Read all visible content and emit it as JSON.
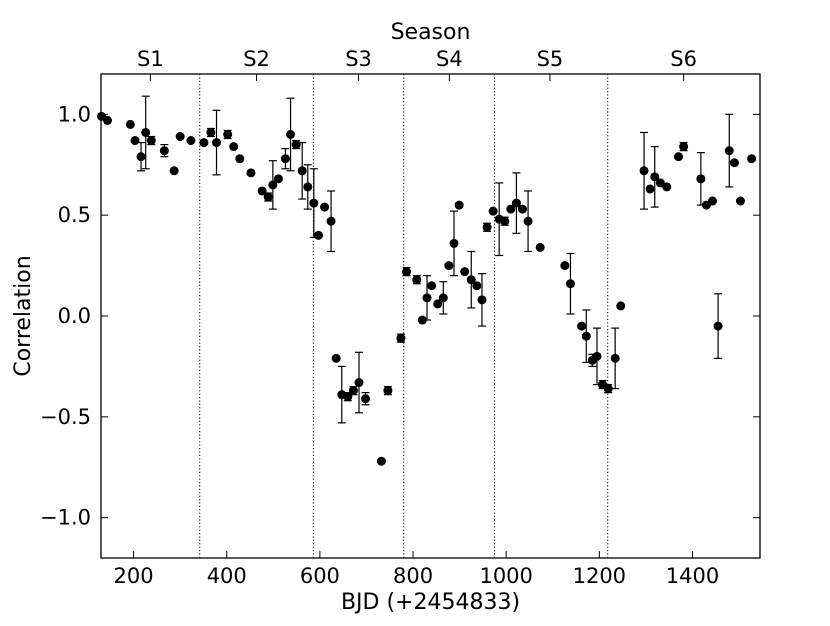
{
  "chart_data": {
    "type": "scatter",
    "xlabel": "BJD (+2454833)",
    "ylabel": "Correlation",
    "top_axis_label": "Season",
    "xlim": [
      130,
      1545
    ],
    "ylim": [
      -1.2,
      1.2
    ],
    "xticks": [
      200,
      400,
      600,
      800,
      1000,
      1200,
      1400
    ],
    "xtick_labels": [
      "200",
      "400",
      "600",
      "800",
      "1000",
      "1200",
      "1400"
    ],
    "yticks": [
      1.0,
      0.5,
      0.0,
      -0.5,
      -1.0
    ],
    "ytick_labels": [
      "1.0",
      "0.5",
      "0.0",
      "−0.5",
      "−1.0"
    ],
    "season_boundaries": [
      342,
      586,
      780,
      975,
      1218
    ],
    "seasons": [
      {
        "label": "S1",
        "x": 236
      },
      {
        "label": "S2",
        "x": 464
      },
      {
        "label": "S3",
        "x": 683
      },
      {
        "label": "S4",
        "x": 878
      },
      {
        "label": "S5",
        "x": 1094
      },
      {
        "label": "S6",
        "x": 1381
      }
    ],
    "points": [
      {
        "x": 131,
        "y": 0.99
      },
      {
        "x": 144,
        "y": 0.97
      },
      {
        "x": 193,
        "y": 0.95
      },
      {
        "x": 203,
        "y": 0.87
      },
      {
        "x": 216,
        "y": 0.79,
        "err": 0.07
      },
      {
        "x": 226,
        "y": 0.91,
        "err": 0.18
      },
      {
        "x": 238,
        "y": 0.87,
        "err": 0.02
      },
      {
        "x": 266,
        "y": 0.82,
        "err": 0.03
      },
      {
        "x": 287,
        "y": 0.72
      },
      {
        "x": 300,
        "y": 0.89
      },
      {
        "x": 323,
        "y": 0.87
      },
      {
        "x": 351,
        "y": 0.86
      },
      {
        "x": 366,
        "y": 0.91,
        "err": 0.02
      },
      {
        "x": 378,
        "y": 0.86,
        "err": 0.16
      },
      {
        "x": 402,
        "y": 0.9,
        "err": 0.02
      },
      {
        "x": 415,
        "y": 0.84
      },
      {
        "x": 428,
        "y": 0.78
      },
      {
        "x": 452,
        "y": 0.71
      },
      {
        "x": 476,
        "y": 0.62
      },
      {
        "x": 489,
        "y": 0.59,
        "err": 0.02
      },
      {
        "x": 499,
        "y": 0.65,
        "err": 0.12
      },
      {
        "x": 511,
        "y": 0.68
      },
      {
        "x": 526,
        "y": 0.78,
        "err": 0.05
      },
      {
        "x": 537,
        "y": 0.9,
        "err": 0.18
      },
      {
        "x": 549,
        "y": 0.85,
        "err": 0.02
      },
      {
        "x": 562,
        "y": 0.72,
        "err": 0.14
      },
      {
        "x": 574,
        "y": 0.64,
        "err": 0.11
      },
      {
        "x": 587,
        "y": 0.56,
        "err": 0.17
      },
      {
        "x": 597,
        "y": 0.4
      },
      {
        "x": 610,
        "y": 0.54
      },
      {
        "x": 624,
        "y": 0.47,
        "err": 0.15
      },
      {
        "x": 635,
        "y": -0.21
      },
      {
        "x": 647,
        "y": -0.39,
        "err": 0.14
      },
      {
        "x": 660,
        "y": -0.4,
        "err": 0.02
      },
      {
        "x": 672,
        "y": -0.37,
        "err": 0.02
      },
      {
        "x": 684,
        "y": -0.33,
        "err": 0.15
      },
      {
        "x": 698,
        "y": -0.41,
        "err": 0.03
      },
      {
        "x": 732,
        "y": -0.72
      },
      {
        "x": 746,
        "y": -0.37,
        "err": 0.02
      },
      {
        "x": 774,
        "y": -0.11,
        "err": 0.02
      },
      {
        "x": 786,
        "y": 0.22,
        "err": 0.02
      },
      {
        "x": 808,
        "y": 0.18,
        "err": 0.02
      },
      {
        "x": 820,
        "y": -0.02
      },
      {
        "x": 830,
        "y": 0.09,
        "err": 0.11
      },
      {
        "x": 840,
        "y": 0.15
      },
      {
        "x": 853,
        "y": 0.06
      },
      {
        "x": 865,
        "y": 0.09,
        "err": 0.08
      },
      {
        "x": 877,
        "y": 0.25
      },
      {
        "x": 888,
        "y": 0.36,
        "err": 0.16
      },
      {
        "x": 899,
        "y": 0.55
      },
      {
        "x": 911,
        "y": 0.22
      },
      {
        "x": 925,
        "y": 0.18,
        "err": 0.14
      },
      {
        "x": 937,
        "y": 0.15
      },
      {
        "x": 948,
        "y": 0.08,
        "err": 0.13
      },
      {
        "x": 959,
        "y": 0.44,
        "err": 0.02
      },
      {
        "x": 972,
        "y": 0.52
      },
      {
        "x": 985,
        "y": 0.48,
        "err": 0.18
      },
      {
        "x": 997,
        "y": 0.47,
        "err": 0.02
      },
      {
        "x": 1010,
        "y": 0.53
      },
      {
        "x": 1022,
        "y": 0.56,
        "err": 0.15
      },
      {
        "x": 1035,
        "y": 0.53
      },
      {
        "x": 1047,
        "y": 0.47,
        "err": 0.15
      },
      {
        "x": 1073,
        "y": 0.34
      },
      {
        "x": 1126,
        "y": 0.25
      },
      {
        "x": 1138,
        "y": 0.16,
        "err": 0.15
      },
      {
        "x": 1162,
        "y": -0.05
      },
      {
        "x": 1172,
        "y": -0.1,
        "err": 0.13
      },
      {
        "x": 1185,
        "y": -0.22,
        "err": 0.03
      },
      {
        "x": 1195,
        "y": -0.2,
        "err": 0.14
      },
      {
        "x": 1207,
        "y": -0.34,
        "err": 0.02
      },
      {
        "x": 1219,
        "y": -0.36,
        "err": 0.02
      },
      {
        "x": 1234,
        "y": -0.21,
        "err": 0.15
      },
      {
        "x": 1246,
        "y": 0.05
      },
      {
        "x": 1296,
        "y": 0.72,
        "err": 0.19
      },
      {
        "x": 1309,
        "y": 0.63
      },
      {
        "x": 1319,
        "y": 0.69,
        "err": 0.15
      },
      {
        "x": 1331,
        "y": 0.66
      },
      {
        "x": 1345,
        "y": 0.64
      },
      {
        "x": 1370,
        "y": 0.79
      },
      {
        "x": 1381,
        "y": 0.84,
        "err": 0.02
      },
      {
        "x": 1418,
        "y": 0.68,
        "err": 0.13
      },
      {
        "x": 1430,
        "y": 0.55
      },
      {
        "x": 1443,
        "y": 0.57
      },
      {
        "x": 1455,
        "y": -0.05,
        "err": 0.16
      },
      {
        "x": 1479,
        "y": 0.82,
        "err": 0.18
      },
      {
        "x": 1490,
        "y": 0.76
      },
      {
        "x": 1503,
        "y": 0.57
      },
      {
        "x": 1527,
        "y": 0.78
      }
    ]
  }
}
